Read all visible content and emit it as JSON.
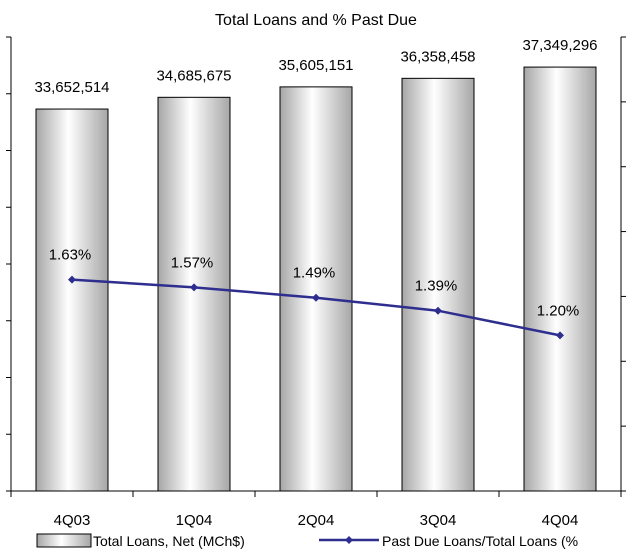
{
  "chart_data": {
    "type": "bar",
    "title": "Total Loans and % Past Due",
    "categories": [
      "4Q03",
      "1Q04",
      "2Q04",
      "3Q04",
      "4Q04"
    ],
    "series": [
      {
        "name": "Total Loans, Net (MCh$)",
        "type": "bar",
        "axis": "left",
        "values": [
          33652514,
          34685675,
          35605151,
          36358458,
          37349296
        ],
        "labels": [
          "33,652,514",
          "34,685,675",
          "35,605,151",
          "36,358,458",
          "37,349,296"
        ]
      },
      {
        "name": "Past Due Loans/Total Loans (%",
        "type": "line",
        "axis": "right",
        "values": [
          1.63,
          1.57,
          1.49,
          1.39,
          1.2
        ],
        "labels": [
          "1.63%",
          "1.57%",
          "1.49%",
          "1.39%",
          "1.20%"
        ]
      }
    ],
    "y_left_lim": [
      0,
      40000000
    ],
    "y_right_lim": [
      0,
      3.5
    ],
    "legend_position": "bottom",
    "grid": false
  },
  "colors": {
    "line": "#2e2e8f",
    "bar_edge": "#000000",
    "bar_light": "#ffffff",
    "bar_dark": "#a8a8a8"
  }
}
